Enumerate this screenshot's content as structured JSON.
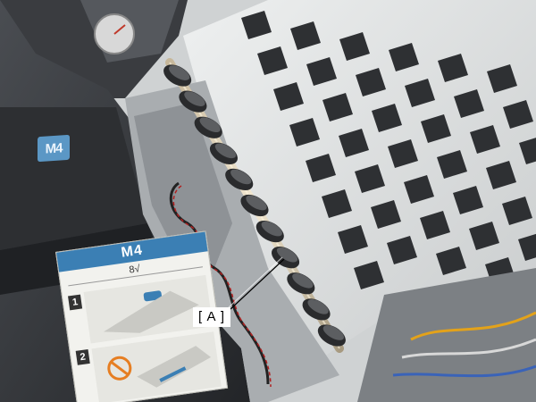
{
  "photo": {
    "badge_text": "M4",
    "label_card": {
      "title": "M4",
      "subtitle": "8√",
      "step_1": "1",
      "step_2": "2"
    },
    "callout_text": "[ A ]"
  }
}
